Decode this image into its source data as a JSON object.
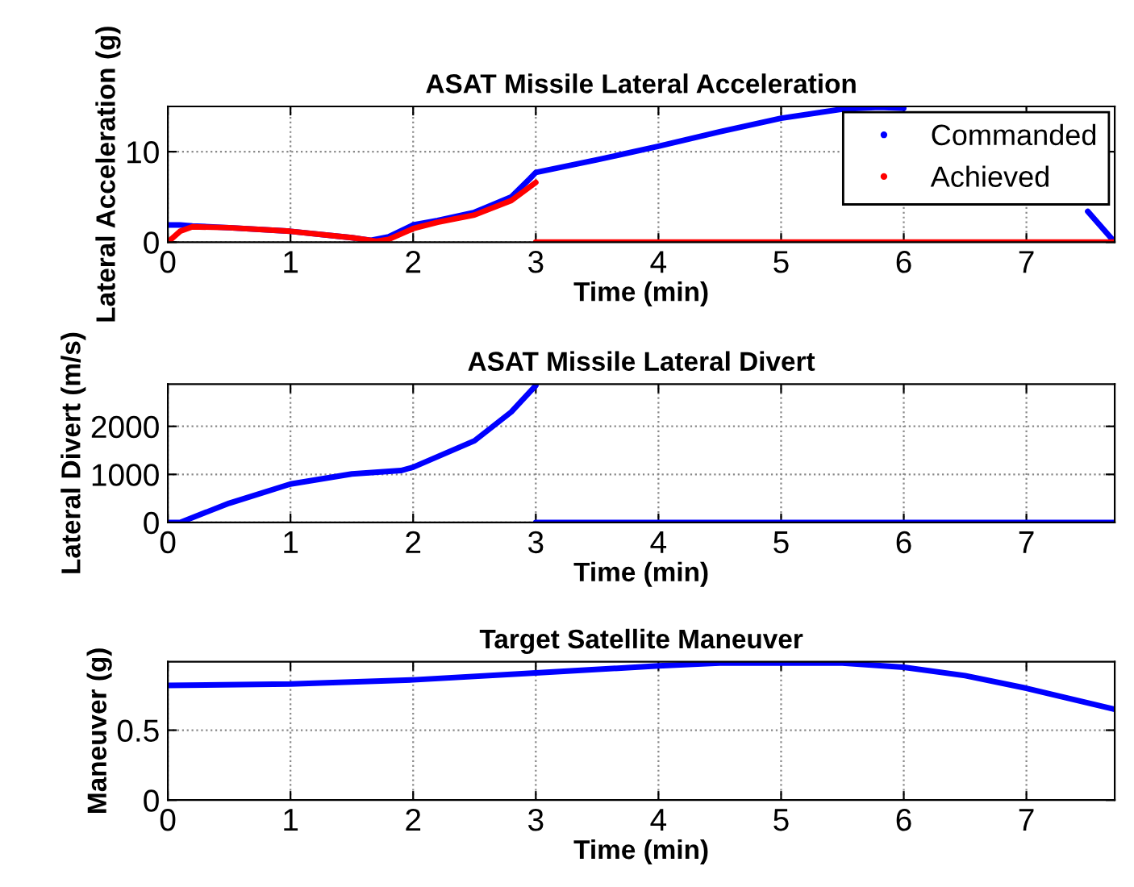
{
  "chart_data": [
    {
      "type": "line",
      "title": "ASAT Missile Lateral Acceleration",
      "xlabel": "Time (min)",
      "ylabel": "Lateral Acceleration (g)",
      "xlim": [
        0,
        7.72
      ],
      "xticks": [
        0,
        1,
        2,
        3,
        4,
        5,
        6,
        7
      ],
      "ylim": [
        0,
        15
      ],
      "yticks": [
        0,
        10
      ],
      "grid": true,
      "legend": "top right",
      "line_style": "solid",
      "series": [
        {
          "name": "Commanded",
          "color": "#0000ff",
          "x": [
            0,
            0.1,
            0.2,
            0.5,
            1,
            1.5,
            1.65,
            1.8,
            2,
            2.2,
            2.5,
            2.8,
            2.95,
            3,
            3.5,
            4,
            4.5,
            5,
            5.5,
            5.8,
            6,
            null,
            7.5,
            7.72
          ],
          "values": [
            1.9,
            1.9,
            1.8,
            1.6,
            1.2,
            0.5,
            0.2,
            0.6,
            1.9,
            2.4,
            3.3,
            5.0,
            7.0,
            7.7,
            9.1,
            10.6,
            12.2,
            13.7,
            14.7,
            14.9,
            14.8,
            null,
            3.4,
            0
          ]
        },
        {
          "name": "Achieved",
          "color": "#ff0000",
          "x": [
            0,
            0.1,
            0.2,
            0.5,
            1,
            1.5,
            1.7,
            1.8,
            2,
            2.2,
            2.5,
            2.8,
            3,
            null,
            3,
            7.72
          ],
          "values": [
            0,
            1.2,
            1.7,
            1.6,
            1.2,
            0.5,
            0.1,
            0.3,
            1.5,
            2.2,
            3.0,
            4.6,
            6.6,
            null,
            0,
            0
          ]
        }
      ]
    },
    {
      "type": "line",
      "title": "ASAT Missile Lateral Divert",
      "xlabel": "Time (min)",
      "ylabel": "Lateral Divert (m/s)",
      "xlim": [
        0,
        7.72
      ],
      "xticks": [
        0,
        1,
        2,
        3,
        4,
        5,
        6,
        7
      ],
      "ylim": [
        0,
        2880
      ],
      "yticks": [
        0,
        1000,
        2000
      ],
      "grid": true,
      "line_style": "solid",
      "series": [
        {
          "color": "#0000ff",
          "x": [
            0,
            0.1,
            0.5,
            1,
            1.5,
            1.9,
            2,
            2.5,
            2.8,
            3,
            null,
            3,
            7.72
          ],
          "values": [
            0,
            0,
            400,
            800,
            1010,
            1080,
            1150,
            1700,
            2300,
            2850,
            null,
            0,
            0
          ]
        }
      ]
    },
    {
      "type": "line",
      "title": "Target Satellite Maneuver",
      "xlabel": "Time (min)",
      "ylabel": "Maneuver (g)",
      "xlim": [
        0,
        7.72
      ],
      "xticks": [
        0,
        1,
        2,
        3,
        4,
        5,
        6,
        7
      ],
      "ylim": [
        0,
        0.99
      ],
      "yticks": [
        0,
        0.5
      ],
      "grid": true,
      "line_style": "solid",
      "series": [
        {
          "color": "#0000ff",
          "x": [
            0,
            1,
            2,
            3,
            4,
            4.5,
            5,
            5.5,
            6,
            6.5,
            7,
            7.72
          ],
          "values": [
            0.82,
            0.83,
            0.86,
            0.91,
            0.96,
            0.98,
            0.98,
            0.98,
            0.95,
            0.89,
            0.8,
            0.65
          ]
        }
      ]
    }
  ]
}
